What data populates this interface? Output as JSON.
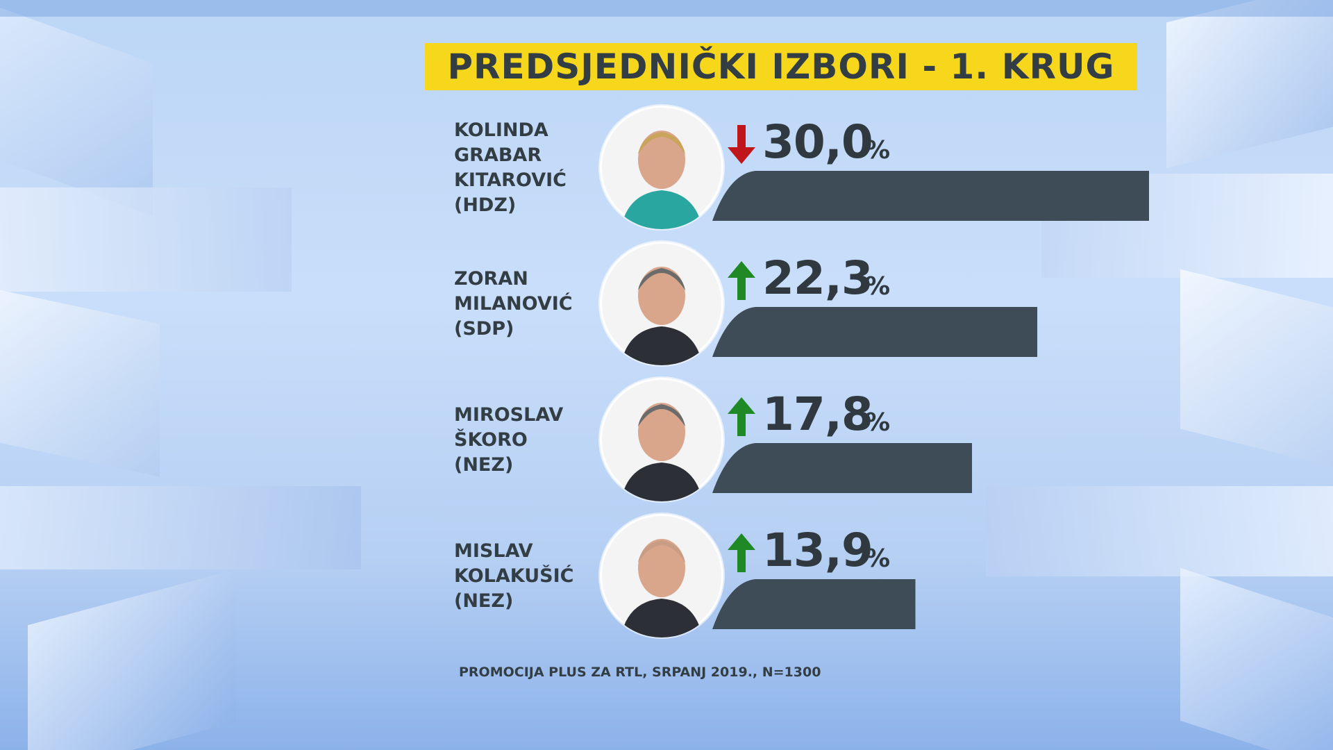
{
  "title": "PREDSJEDNIČKI IZBORI - 1. KRUG",
  "chart_data": {
    "type": "bar",
    "orientation": "horizontal",
    "title": "PREDSJEDNIČKI IZBORI - 1. KRUG",
    "categories": [
      "KOLINDA GRABAR KITAROVIĆ (HDZ)",
      "ZORAN MILANOVIĆ (SDP)",
      "MIROSLAV ŠKORO (NEZ)",
      "MISLAV KOLAKUŠIĆ (NEZ)"
    ],
    "values": [
      30.0,
      22.3,
      17.8,
      13.9
    ],
    "value_labels": [
      "30,0",
      "22,3",
      "17,8",
      "13,9"
    ],
    "unit": "%",
    "trends": [
      "down",
      "up",
      "up",
      "up"
    ],
    "bar_color": "#3d4c56",
    "grid": false,
    "legend": "none"
  },
  "candidates": [
    {
      "name_lines": "KOLINDA\nGRABAR\nKITAROVIĆ\n(HDZ)",
      "value_label": "30,0",
      "unit": "%",
      "trend": "down",
      "photo": "candidate-photo"
    },
    {
      "name_lines": "ZORAN\nMILANOVIĆ\n(SDP)",
      "value_label": "22,3",
      "unit": "%",
      "trend": "up",
      "photo": "candidate-photo"
    },
    {
      "name_lines": "MIROSLAV\nŠKORO\n(NEZ)",
      "value_label": "17,8",
      "unit": "%",
      "trend": "up",
      "photo": "candidate-photo"
    },
    {
      "name_lines": "MISLAV\nKOLAKUŠIĆ\n(NEZ)",
      "value_label": "13,9",
      "unit": "%",
      "trend": "up",
      "photo": "candidate-photo"
    }
  ],
  "colors": {
    "title_bg": "#f7d71b",
    "down_arrow": "#c0151b",
    "up_arrow": "#1f8a25",
    "text": "#333d44"
  },
  "footnote": "PROMOCIJA PLUS ZA RTL, SRPANJ 2019., N=1300"
}
